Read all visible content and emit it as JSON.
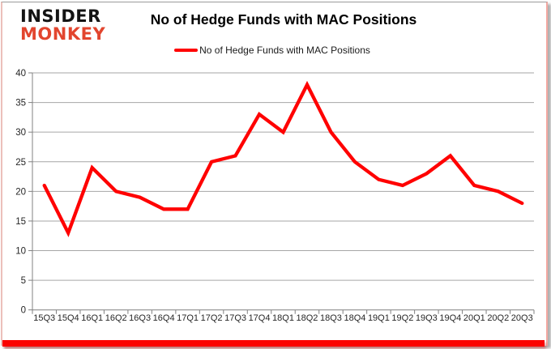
{
  "logo": {
    "line1": "INSIDER",
    "line2": "MONKEY"
  },
  "header": {
    "title": "No of Hedge Funds with MAC Positions"
  },
  "legend": {
    "label": "No of Hedge Funds with MAC Positions"
  },
  "colors": {
    "line": "#ff0000",
    "logo_red": "#e2452e",
    "grid": "#a6a6a6",
    "axis": "#808080",
    "tick_text": "#262626",
    "footer_bar": "#fb0200"
  },
  "chart_data": {
    "type": "line",
    "title": "No of Hedge Funds with MAC Positions",
    "categories": [
      "15Q3",
      "15Q4",
      "16Q1",
      "16Q2",
      "16Q3",
      "16Q4",
      "17Q1",
      "17Q2",
      "17Q3",
      "17Q4",
      "18Q1",
      "18Q2",
      "18Q3",
      "18Q4",
      "19Q1",
      "19Q2",
      "19Q3",
      "19Q4",
      "20Q1",
      "20Q2",
      "20Q3"
    ],
    "series": [
      {
        "name": "No of Hedge Funds with MAC Positions",
        "color": "#ff0000",
        "values": [
          21,
          13,
          24,
          20,
          19,
          17,
          17,
          25,
          26,
          33,
          30,
          38,
          30,
          25,
          22,
          21,
          23,
          26,
          21,
          20,
          18
        ]
      }
    ],
    "xlabel": "",
    "ylabel": "",
    "ylim": [
      0,
      40
    ],
    "ytick_step": 5,
    "grid": true,
    "legend_position": "top-center"
  }
}
